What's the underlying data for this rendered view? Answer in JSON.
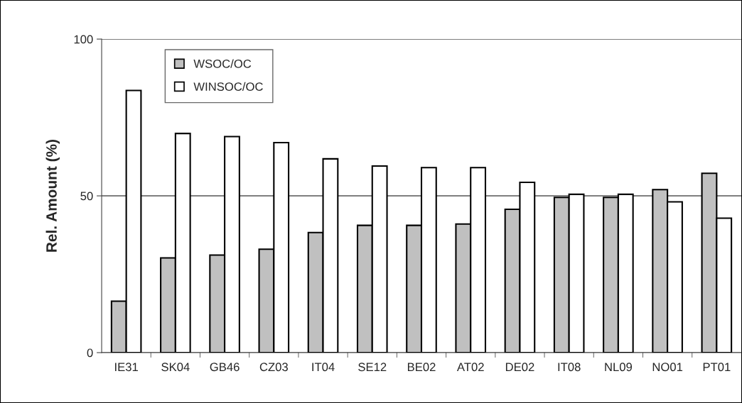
{
  "chart_data": {
    "type": "bar",
    "ylabel": "Rel. Amount (%)",
    "categories": [
      "IE31",
      "SK04",
      "GB46",
      "CZ03",
      "IT04",
      "SE12",
      "BE02",
      "AT02",
      "DE02",
      "IT08",
      "NL09",
      "NO01",
      "PT01"
    ],
    "series": [
      {
        "name": "WSOC/OC",
        "color": "#c0c0c0",
        "values": [
          16.4,
          30.2,
          31.1,
          33.0,
          38.3,
          40.6,
          40.6,
          41.0,
          45.7,
          49.5,
          49.5,
          52.0,
          57.2
        ]
      },
      {
        "name": "WINSOC/OC",
        "color": "#ffffff",
        "values": [
          83.6,
          69.9,
          68.9,
          67.0,
          61.8,
          59.5,
          59.0,
          59.0,
          54.3,
          50.5,
          50.5,
          48.1,
          42.9
        ]
      }
    ],
    "ylim": [
      0,
      100
    ],
    "yticks": [
      0,
      50,
      100
    ],
    "grid": "y",
    "legend": "top left"
  }
}
